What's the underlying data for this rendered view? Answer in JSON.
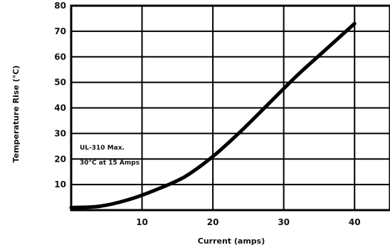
{
  "chart_data": {
    "type": "line",
    "title": "",
    "xlabel": "Current (amps)",
    "ylabel": "Temperature Rise (°C)",
    "xlim": [
      0,
      45
    ],
    "ylim": [
      0,
      80
    ],
    "x_ticks": [
      10,
      20,
      30,
      40
    ],
    "y_ticks": [
      10,
      20,
      30,
      40,
      50,
      60,
      70,
      80
    ],
    "grid": true,
    "series": [
      {
        "x": [
          0,
          4,
          8,
          12,
          16,
          20,
          24,
          28,
          32,
          36,
          40
        ],
        "y": [
          1,
          1.5,
          4,
          8,
          13,
          21,
          31,
          42,
          53,
          63,
          73
        ]
      }
    ],
    "annotations": [
      "UL-310 Max.",
      "30°C at 15 Amps"
    ]
  }
}
